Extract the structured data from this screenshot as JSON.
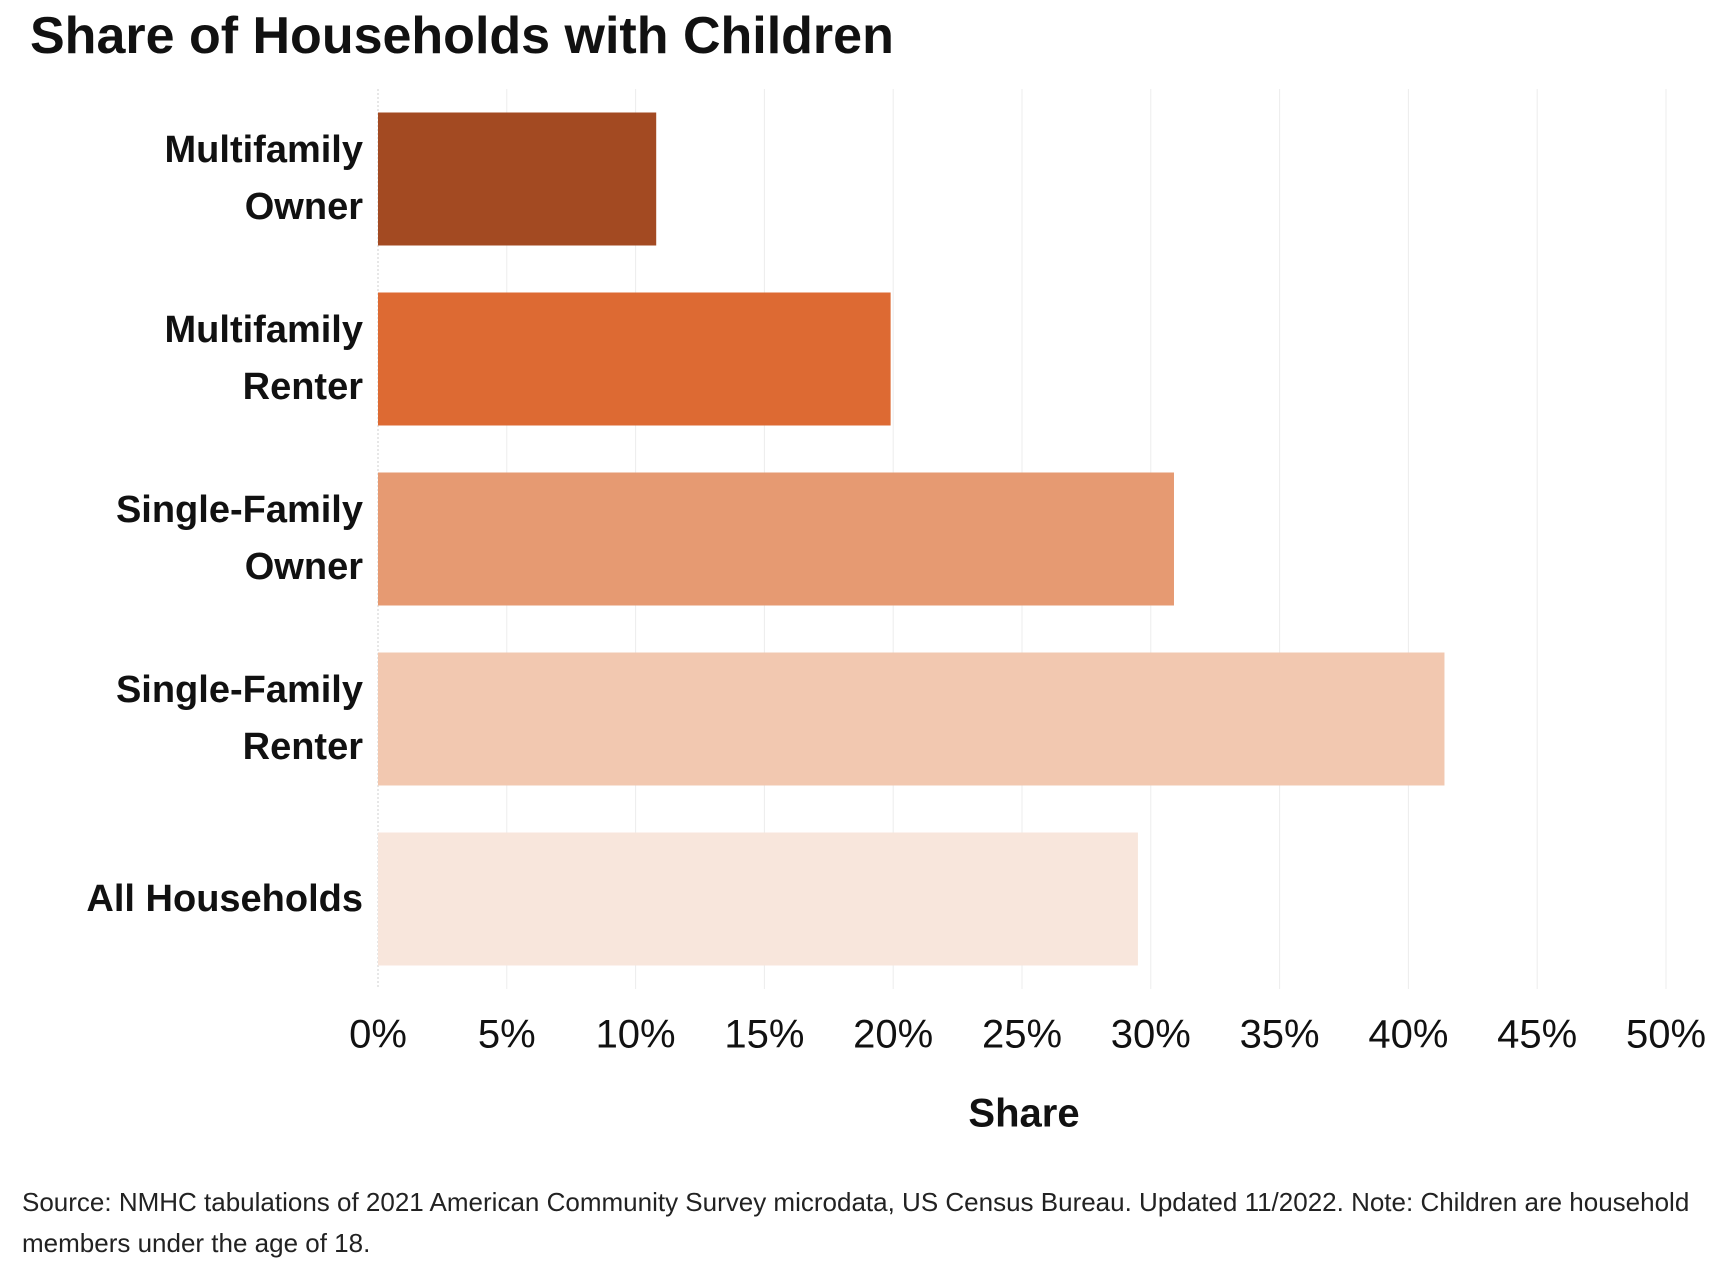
{
  "chart_data": {
    "type": "bar",
    "orientation": "horizontal",
    "title": "Share of Households with Children",
    "categories": [
      "Multifamily Owner",
      "Multifamily Renter",
      "Single-Family Owner",
      "Single-Family Renter",
      "All Households"
    ],
    "values": [
      10.8,
      19.9,
      30.9,
      41.4,
      29.5
    ],
    "colors": [
      "#a34a22",
      "#dd6a33",
      "#e69a72",
      "#f2c8b0",
      "#f8e6dc"
    ],
    "xlim": [
      0,
      50
    ],
    "xticks": [
      {
        "value": 0,
        "label": "0%"
      },
      {
        "value": 5,
        "label": "5%"
      },
      {
        "value": 10,
        "label": "10%"
      },
      {
        "value": 15,
        "label": "15%"
      },
      {
        "value": 20,
        "label": "20%"
      },
      {
        "value": 25,
        "label": "25%"
      },
      {
        "value": 30,
        "label": "30%"
      },
      {
        "value": 35,
        "label": "35%"
      },
      {
        "value": 40,
        "label": "40%"
      },
      {
        "value": 45,
        "label": "45%"
      },
      {
        "value": 50,
        "label": "50%"
      }
    ],
    "xlabel": "Share",
    "grid": true,
    "source": "Source: NMHC tabulations of 2021 American Community Survey microdata, US Census Bureau. Updated 11/2022. Note: Children are household members under the age of 18."
  }
}
